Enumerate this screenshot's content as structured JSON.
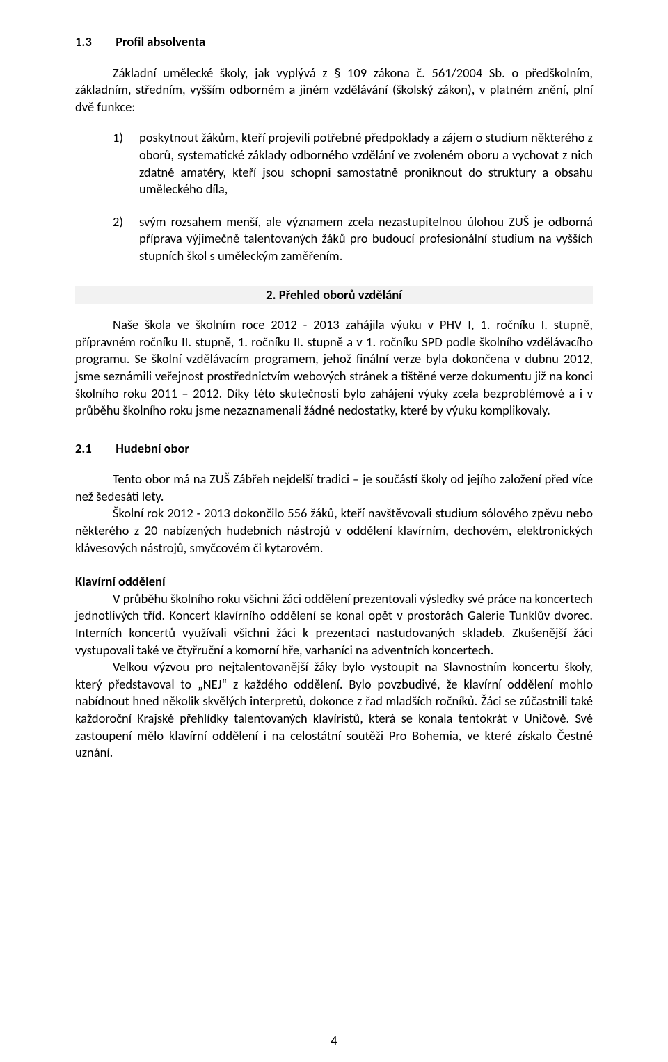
{
  "colors": {
    "text": "#000000",
    "background": "#ffffff",
    "heading_band_bg": "#f2f2f2"
  },
  "typography": {
    "font_family": "Calibri",
    "body_size_pt": 11,
    "line_height": 1.33
  },
  "page_number": "4",
  "section_1_3": {
    "number": "1.3",
    "title": "Profil absolventa",
    "intro_line": "Základní umělecké školy, jak vyplývá z § 109 zákona č. 561/2004 Sb. o předškolním, základním, středním, vyšším odborném a jiném vzdělávání (školský zákon), v platném znění, plní dvě funkce:",
    "items": [
      {
        "marker": "1)",
        "text": "poskytnout žákům, kteří projevili potřebné předpoklady a zájem o studium některého z oborů, systematické základy odborného vzdělání ve zvoleném oboru a vychovat z nich zdatné amatéry, kteří jsou schopni samostatně proniknout do struktury a obsahu uměleckého díla,"
      },
      {
        "marker": "2)",
        "text": "svým rozsahem menší, ale významem zcela nezastupitelnou úlohou ZUŠ je odborná příprava výjimečně talentovaných žáků pro budoucí profesionální studium na vyšších stupních škol s uměleckým zaměřením."
      }
    ]
  },
  "section_2": {
    "heading": "2. Přehled oborů vzdělání",
    "intro": "Naše škola ve školním roce 2012 - 2013 zahájila výuku v PHV I, 1. ročníku I. stupně, přípravném ročníku II. stupně, 1. ročníku II. stupně a v 1. ročníku SPD podle školního vzdělávacího programu. Se školní vzdělávacím programem, jehož finální verze byla dokončena v dubnu 2012, jsme seznámili veřejnost prostřednictvím webových stránek a tištěné verze dokumentu již na konci školního roku 2011 – 2012. Díky této skutečnosti bylo zahájení výuky zcela bezproblémové a i v průběhu školního roku jsme nezaznamenali žádné nedostatky, které by výuku komplikovaly."
  },
  "section_2_1": {
    "number": "2.1",
    "title": "Hudební obor",
    "para1": "Tento obor má na ZUŠ Zábřeh nejdelší tradici – je součástí školy od jejího založení před více než šedesáti lety.",
    "para2": "Školní rok 2012 - 2013 dokončilo 556 žáků, kteří navštěvovali studium sólového zpěvu nebo některého z 20 nabízených hudebních nástrojů v oddělení klavírním, dechovém, elektronických klávesových nástrojů, smyčcovém či kytarovém.",
    "klavir_heading": "Klavírní oddělení",
    "klavir_p1": "V průběhu školního roku všichni žáci oddělení prezentovali výsledky své práce na koncertech jednotlivých tříd. Koncert klavírního oddělení se konal opět v prostorách Galerie Tunklův dvorec. Interních koncertů využívali všichni žáci k prezentaci nastudovaných skladeb. Zkušenější žáci vystupovali také ve čtyřruční a komorní hře, varhaníci na adventních koncertech.",
    "klavir_p2": "Velkou výzvou pro nejtalentovanější žáky bylo vystoupit na Slavnostním koncertu školy, který představoval to „NEJ“ z každého oddělení. Bylo povzbudivé, že klavírní oddělení mohlo nabídnout hned několik skvělých interpretů, dokonce z řad mladších ročníků. Žáci se zúčastnili také každoroční Krajské přehlídky talentovaných klavíristů, která se konala tentokrát v Uničově. Své zastoupení mělo klavírní oddělení i na celostátní soutěži Pro Bohemia, ve které získalo Čestné uznání."
  }
}
